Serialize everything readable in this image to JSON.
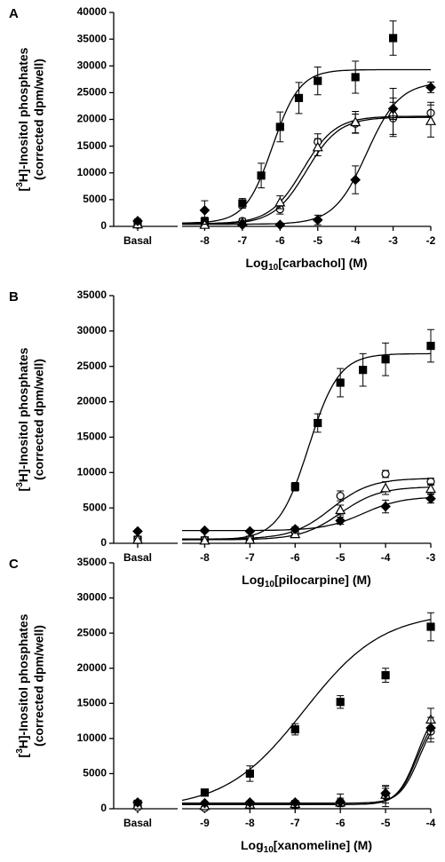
{
  "chart_data": [
    {
      "type": "scatter",
      "panel": "A",
      "y_label": [
        "[",
        "3",
        "H]-Inositol phosphates"
      ],
      "y_label_2": "(corrected dpm/well)",
      "x_label": [
        "Log",
        "10",
        "[carbachol] (M)"
      ],
      "basal_label": "Basal",
      "xlim": [
        -8.6,
        -2
      ],
      "xticks": [
        -8,
        -7,
        -6,
        -5,
        -4,
        -3,
        -2
      ],
      "ylim": [
        0,
        40000
      ],
      "yticks": [
        0,
        5000,
        10000,
        15000,
        20000,
        25000,
        30000,
        35000,
        40000
      ],
      "series": [
        {
          "marker": "square",
          "filled": true,
          "color": "#000000",
          "basal": 500,
          "basal_error": 300,
          "x": [
            -8,
            -7,
            -6.5,
            -6,
            -5.5,
            -5,
            -4,
            -3
          ],
          "values": [
            900,
            4300,
            9500,
            18600,
            24000,
            27200,
            27900,
            35200
          ],
          "errors": [
            800,
            900,
            2300,
            2800,
            2900,
            2600,
            3000,
            3200
          ],
          "fit": {
            "bottom": 600,
            "top": 29300,
            "log_ec50": -6.2,
            "hill": 1.2
          }
        },
        {
          "marker": "circle",
          "filled": false,
          "color": "#000000",
          "basal": 300,
          "basal_error": 200,
          "x": [
            -7,
            -6,
            -5,
            -4,
            -3,
            -2
          ],
          "values": [
            1000,
            3200,
            15800,
            19200,
            20200,
            21200
          ],
          "errors": [
            500,
            900,
            1500,
            1800,
            3000,
            2000
          ],
          "fit": {
            "bottom": 500,
            "top": 20600,
            "log_ec50": -5.4,
            "hill": 1
          }
        },
        {
          "marker": "triangle",
          "filled": false,
          "color": "#000000",
          "basal": 400,
          "basal_error": 200,
          "x": [
            -8,
            -7,
            -6,
            -5,
            -4,
            -3,
            -2
          ],
          "values": [
            300,
            700,
            4500,
            14800,
            19500,
            21300,
            19700
          ],
          "errors": [
            300,
            400,
            1200,
            1600,
            2000,
            4500,
            3000
          ],
          "fit": {
            "bottom": 400,
            "top": 20400,
            "log_ec50": -5.3,
            "hill": 1
          }
        },
        {
          "marker": "diamond",
          "filled": true,
          "color": "#000000",
          "basal": 1000,
          "basal_error": 400,
          "x": [
            -8,
            -7,
            -6,
            -5,
            -4,
            -3,
            -2
          ],
          "values": [
            3000,
            300,
            300,
            1200,
            8700,
            22000,
            26000
          ],
          "errors": [
            1800,
            300,
            300,
            900,
            2600,
            2000,
            1000
          ],
          "fit": {
            "bottom": 400,
            "top": 27000,
            "log_ec50": -3.7,
            "hill": 1
          }
        }
      ]
    },
    {
      "type": "scatter",
      "panel": "B",
      "y_label": [
        "[",
        "3",
        "H]-Inositol phosphates"
      ],
      "y_label_2": "(corrected dpm/well)",
      "x_label": [
        "Log",
        "10",
        "[pilocarpine] (M)"
      ],
      "basal_label": "Basal",
      "xlim": [
        -8.5,
        -3
      ],
      "xticks": [
        -8,
        -7,
        -6,
        -5,
        -4,
        -3
      ],
      "ylim": [
        0,
        35000
      ],
      "yticks": [
        0,
        5000,
        10000,
        15000,
        20000,
        25000,
        30000,
        35000
      ],
      "series": [
        {
          "marker": "square",
          "filled": true,
          "color": "#000000",
          "basal": 500,
          "basal_error": 200,
          "x": [
            -8,
            -7,
            -6,
            -5.5,
            -5,
            -4.5,
            -4,
            -3
          ],
          "values": [
            400,
            500,
            8000,
            17000,
            22700,
            24500,
            26000,
            27900
          ],
          "errors": [
            200,
            200,
            600,
            1300,
            2000,
            2300,
            2300,
            2300
          ],
          "fit": {
            "bottom": 500,
            "top": 26800,
            "log_ec50": -5.7,
            "hill": 1.3
          }
        },
        {
          "marker": "circle",
          "filled": false,
          "color": "#000000",
          "basal": 600,
          "basal_error": 200,
          "x": [
            -8,
            -7,
            -6,
            -5,
            -4,
            -3
          ],
          "values": [
            500,
            600,
            1500,
            6700,
            9800,
            8700
          ],
          "errors": [
            200,
            200,
            400,
            700,
            500,
            500
          ],
          "fit": {
            "bottom": 600,
            "top": 9200,
            "log_ec50": -5.2,
            "hill": 1
          }
        },
        {
          "marker": "triangle",
          "filled": false,
          "color": "#000000",
          "basal": 500,
          "basal_error": 200,
          "x": [
            -8,
            -7,
            -6,
            -5,
            -4,
            -3
          ],
          "values": [
            400,
            500,
            1300,
            4700,
            7800,
            7700
          ],
          "errors": [
            200,
            200,
            400,
            700,
            900,
            700
          ],
          "fit": {
            "bottom": 500,
            "top": 8000,
            "log_ec50": -5,
            "hill": 1
          }
        },
        {
          "marker": "diamond",
          "filled": true,
          "color": "#000000",
          "basal": 1700,
          "basal_error": 200,
          "x": [
            -8,
            -7,
            -6,
            -5,
            -4,
            -3
          ],
          "values": [
            1800,
            1700,
            2000,
            3200,
            5200,
            6300
          ],
          "errors": [
            200,
            200,
            300,
            500,
            900,
            600
          ],
          "fit": {
            "bottom": 1800,
            "top": 6600,
            "log_ec50": -4.5,
            "hill": 1
          }
        }
      ]
    },
    {
      "type": "scatter",
      "panel": "C",
      "y_label": [
        "[",
        "3",
        "H]-Inositol phosphates"
      ],
      "y_label_2": "(corrected dpm/well)",
      "x_label": [
        "Log",
        "10",
        "[xanomeline] (M)"
      ],
      "basal_label": "Basal",
      "xlim": [
        -9.5,
        -4
      ],
      "xticks": [
        -9,
        -8,
        -7,
        -6,
        -5,
        -4
      ],
      "ylim": [
        0,
        35000
      ],
      "yticks": [
        0,
        5000,
        10000,
        15000,
        20000,
        25000,
        30000,
        35000
      ],
      "series": [
        {
          "marker": "square",
          "filled": true,
          "color": "#000000",
          "basal": 700,
          "basal_error": 300,
          "x": [
            -9,
            -8,
            -7,
            -6,
            -5,
            -4
          ],
          "values": [
            2300,
            5000,
            11300,
            15200,
            19000,
            25900
          ],
          "errors": [
            500,
            1100,
            800,
            900,
            1000,
            2000
          ],
          "fit": {
            "bottom": 0,
            "top": 28000,
            "log_ec50": -6.8,
            "hill": 0.5
          }
        },
        {
          "marker": "circle",
          "filled": false,
          "color": "#000000",
          "basal": 200,
          "basal_error": 200,
          "x": [
            -9,
            -8,
            -7,
            -6,
            -5,
            -4
          ],
          "values": [
            100,
            500,
            600,
            800,
            1800,
            11000
          ],
          "errors": [
            200,
            300,
            500,
            1300,
            1500,
            1500
          ],
          "fit": {
            "bottom": 600,
            "top": 14000,
            "log_ec50": -4.3,
            "hill": 2
          }
        },
        {
          "marker": "triangle",
          "filled": false,
          "color": "#000000",
          "basal": 500,
          "basal_error": 200,
          "x": [
            -9,
            -8,
            -7,
            -6,
            -5,
            -4
          ],
          "values": [
            400,
            600,
            700,
            900,
            2000,
            12700
          ],
          "errors": [
            200,
            300,
            400,
            600,
            1200,
            1600
          ],
          "fit": {
            "bottom": 600,
            "top": 15000,
            "log_ec50": -4.3,
            "hill": 2
          }
        },
        {
          "marker": "diamond",
          "filled": true,
          "color": "#000000",
          "basal": 900,
          "basal_error": 200,
          "x": [
            -9,
            -8,
            -7,
            -6,
            -5,
            -4
          ],
          "values": [
            800,
            900,
            900,
            1000,
            2200,
            11500
          ],
          "errors": [
            200,
            200,
            300,
            300,
            700,
            1500
          ],
          "fit": {
            "bottom": 800,
            "top": 14000,
            "log_ec50": -4.25,
            "hill": 2
          }
        }
      ]
    }
  ]
}
